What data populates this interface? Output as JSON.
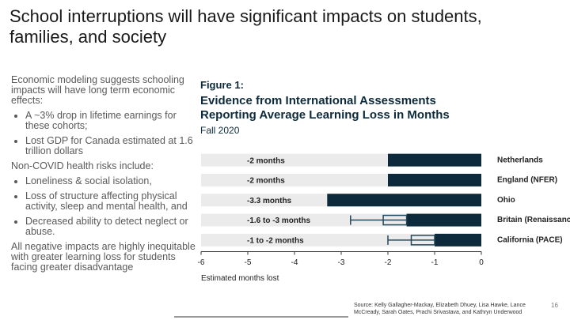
{
  "slide_title": "School interruptions will have significant impacts on students, families, and society",
  "left_text": [
    {
      "paragraph": "Economic modeling suggests schooling impacts will have long term economic effects:"
    },
    {
      "bullets": [
        "A ~3% drop in lifetime earnings for these cohorts;",
        "Lost GDP for Canada estimated at 1.6 trillion dollars"
      ]
    },
    {
      "paragraph": "Non-COVID health risks include:"
    },
    {
      "bullets": [
        "Loneliness & social isolation,",
        "Loss of structure affecting physical activity, sleep and mental health, and",
        "Decreased ability to detect neglect or abuse."
      ]
    },
    {
      "paragraph": "All negative impacts are highly inequitable with greater learning loss for students facing greater disadvantage"
    }
  ],
  "chart_data": {
    "type": "bar",
    "figure_label": "Figure 1:",
    "title": "Evidence from International Assessments Reporting Average Learning Loss in Months",
    "subtitle": "Fall 2020",
    "categories": [
      "Netherlands",
      "England (NFER)",
      "Ohio",
      "Britain (Renaissance)",
      "California (PACE)"
    ],
    "values": [
      -2,
      -2,
      -3.3,
      -1.6,
      -1
    ],
    "value_labels": [
      "-2 months",
      "-2 months",
      "-3.3 months",
      "-1.6 to -3 months",
      "-1 to -2 months"
    ],
    "error_low": [
      null,
      null,
      null,
      -2.8,
      -2
    ],
    "error_mid": [
      null,
      null,
      null,
      -2.1,
      -1.5
    ],
    "color": "#0c2a3b",
    "background_color": "#ebebeb",
    "xlim": [
      -6,
      0
    ],
    "xticks": [
      -6,
      -5,
      -4,
      -3,
      -2,
      -1,
      0
    ],
    "xlabel": "Estimated months lost"
  },
  "source": "Source: Kelly Gallagher-Mackay, Elizabeth Dhuey, Lisa Hawke, Lance McCready, Sarah Oates, Prachi Srivastava, and Kathryn Underwood",
  "page_number": "16"
}
